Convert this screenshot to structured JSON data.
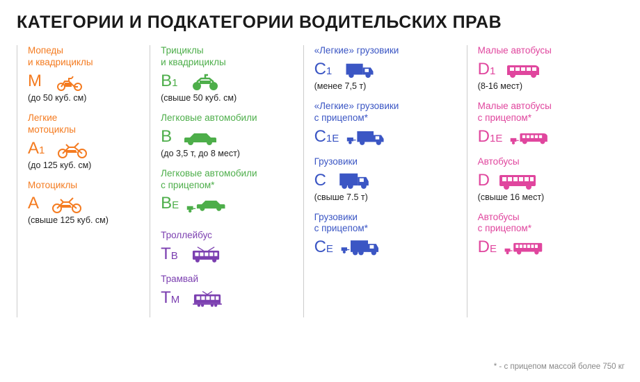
{
  "title": "КАТЕГОРИИ И ПОДКАТЕГОРИИ ВОДИТЕЛЬСКИХ ПРАВ",
  "footnote": "* - с прицепом массой более 750 кг",
  "colors": {
    "orange": "#f47b20",
    "green": "#4dae4a",
    "purple": "#7b3fb0",
    "blue": "#3b56c4",
    "magenta": "#e0469e"
  },
  "columns": [
    {
      "items": [
        {
          "title": "Мопеды\nи квадрициклы",
          "code": "M",
          "icon": "moped",
          "spec": "(до 50 куб. см)",
          "color": "orange"
        },
        {
          "title": "Легкие\nмотоциклы",
          "code": "A",
          "sub": "1",
          "icon": "moto",
          "spec": "(до 125 куб. см)",
          "color": "orange"
        },
        {
          "title": "Мотоциклы",
          "code": "A",
          "icon": "moto",
          "spec": "(свыше 125 куб. см)",
          "color": "orange"
        }
      ]
    },
    {
      "items": [
        {
          "title": "Трициклы\nи квадрициклы",
          "code": "B",
          "sub": "1",
          "icon": "quad",
          "spec": "(свыше 50 куб. см)",
          "color": "green"
        },
        {
          "title": "Легковые автомобили",
          "code": "B",
          "icon": "car",
          "spec": "(до 3,5 т, до 8 мест)",
          "color": "green"
        },
        {
          "title": "Легковые автомобили\nс прицепом*",
          "code": "B",
          "sub": "E",
          "icon": "car-trailer",
          "spec": "",
          "color": "green"
        },
        {
          "title": "Троллейбус",
          "code": "T",
          "sub": "B",
          "icon": "trolley",
          "spec": "",
          "color": "purple",
          "gap": true
        },
        {
          "title": "Трамвай",
          "code": "T",
          "sub": "M",
          "icon": "tram",
          "spec": "",
          "color": "purple"
        }
      ]
    },
    {
      "items": [
        {
          "title": "«Легкие» грузовики",
          "code": "C",
          "sub": "1",
          "icon": "truck-sm",
          "spec": "(менее 7,5 т)",
          "color": "blue"
        },
        {
          "title": "«Легкие» грузовики\nс прицепом*",
          "code": "C",
          "sub": "1E",
          "icon": "truck-sm-trailer",
          "spec": "",
          "color": "blue"
        },
        {
          "title": "Грузовики",
          "code": "C",
          "icon": "truck",
          "spec": "(свыше 7.5 т)",
          "color": "blue"
        },
        {
          "title": "Грузовики\nс прицепом*",
          "code": "C",
          "sub": "E",
          "icon": "truck-trailer",
          "spec": "",
          "color": "blue"
        }
      ]
    },
    {
      "items": [
        {
          "title": "Малые автобусы",
          "code": "D",
          "sub": "1",
          "icon": "minibus",
          "spec": "(8-16 мест)",
          "color": "magenta"
        },
        {
          "title": "Малые автобусы\nс прицепом*",
          "code": "D",
          "sub": "1E",
          "icon": "minibus-trailer",
          "spec": "",
          "color": "magenta"
        },
        {
          "title": "Автобусы",
          "code": "D",
          "icon": "bus",
          "spec": "(свыше 16 мест)",
          "color": "magenta"
        },
        {
          "title": "Автобусы\nс прицепом*",
          "code": "D",
          "sub": "E",
          "icon": "bus-trailer",
          "spec": "",
          "color": "magenta"
        }
      ]
    }
  ]
}
